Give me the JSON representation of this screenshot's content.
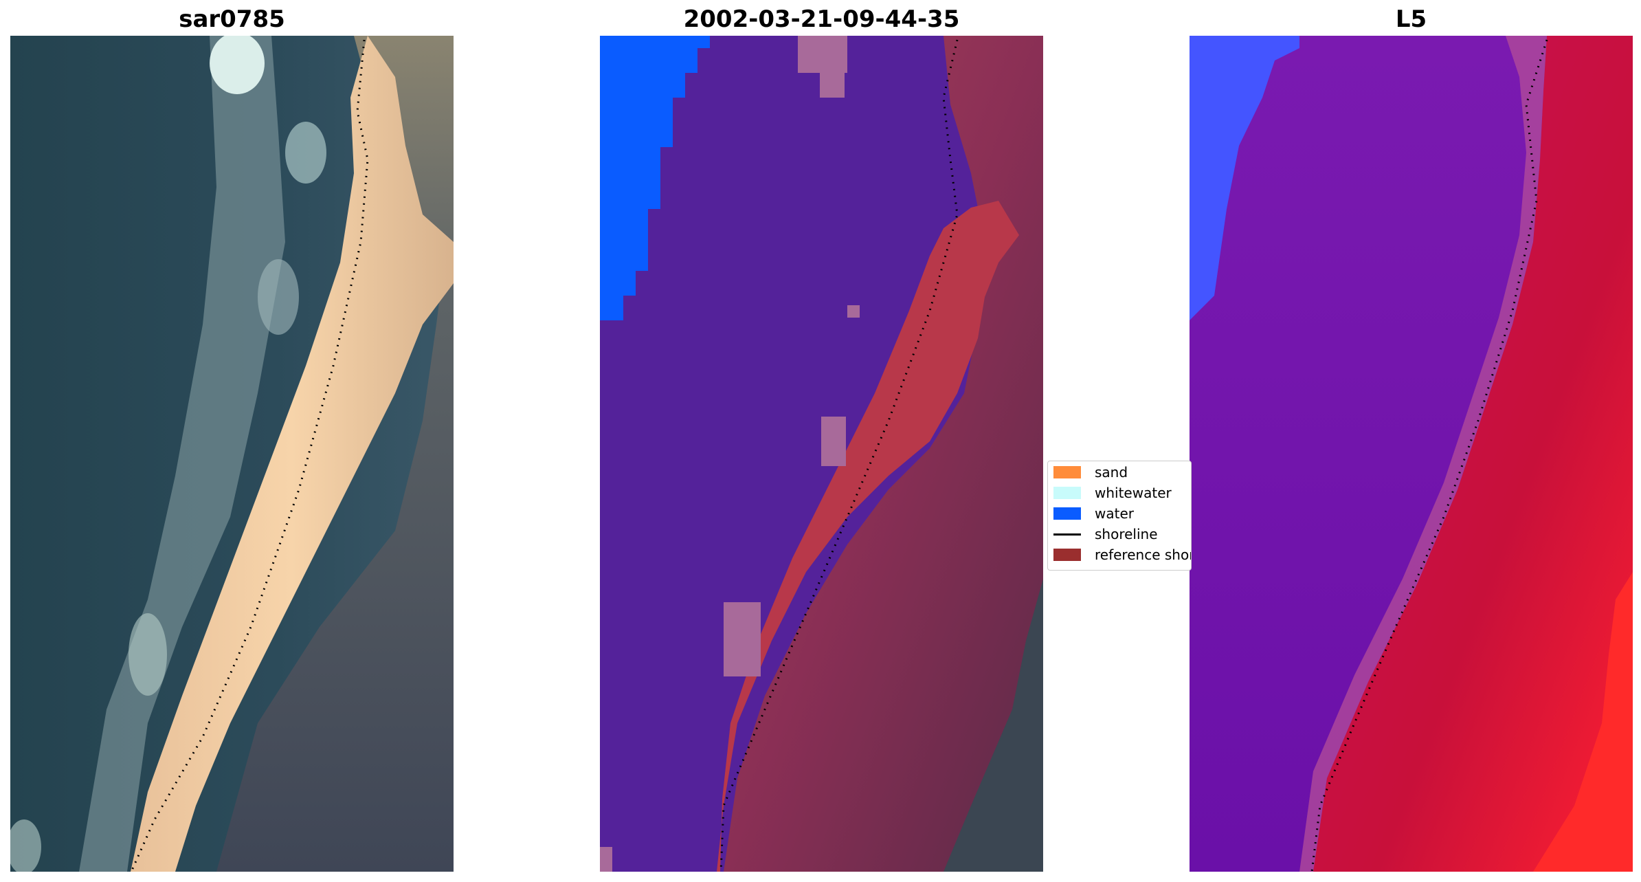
{
  "panels": [
    {
      "title": "sar0785"
    },
    {
      "title": "2002-03-21-09-44-35"
    },
    {
      "title": "L5"
    }
  ],
  "legend": {
    "items": [
      {
        "label": "sand",
        "color": "#ff8c3a",
        "kind": "patch"
      },
      {
        "label": "whitewater",
        "color": "#c8fbfb",
        "kind": "patch"
      },
      {
        "label": "water",
        "color": "#0a5cff",
        "kind": "patch"
      },
      {
        "label": "shoreline",
        "color": "#000000",
        "kind": "line"
      },
      {
        "label": "reference shoreline",
        "color": "#9a2e2e",
        "kind": "patch"
      }
    ]
  },
  "colors": {
    "rgb_water": "#2b4a5a",
    "rgb_sand": "#f3cfa4",
    "rgb_land": "#4d5560",
    "class_water_body": "#54229a",
    "class_ocean_blue": "#0a5cff",
    "class_sand_overlay": "#b8384a",
    "class_land": "#8a2f55",
    "index_water": "#6616a8",
    "index_land": "#c8103a",
    "index_blue": "#4455ff"
  }
}
